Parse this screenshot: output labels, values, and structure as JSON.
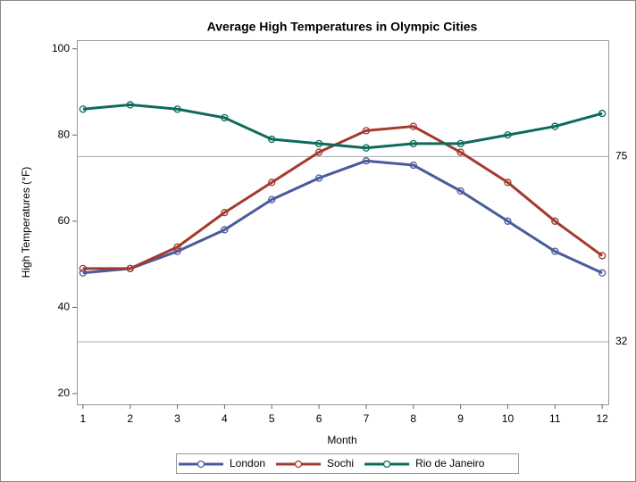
{
  "chart_data": {
    "type": "line",
    "title": "Average High Temperatures in Olympic Cities",
    "x_label": "Month",
    "y_label": "High Temperatures (°F)",
    "x": [
      1,
      2,
      3,
      4,
      5,
      6,
      7,
      8,
      9,
      10,
      11,
      12
    ],
    "series": [
      {
        "name": "London",
        "color": "#4a5a9c",
        "values": [
          48,
          49,
          53,
          58,
          65,
          70,
          74,
          73,
          67,
          60,
          53,
          48
        ]
      },
      {
        "name": "Sochi",
        "color": "#a33a2e",
        "values": [
          49,
          49,
          54,
          62,
          69,
          76,
          81,
          82,
          76,
          69,
          60,
          52
        ]
      },
      {
        "name": "Rio de Janeiro",
        "color": "#0d6b5c",
        "values": [
          86,
          87,
          86,
          84,
          79,
          78,
          77,
          78,
          78,
          80,
          82,
          85
        ]
      }
    ],
    "xlim": [
      0.87,
      12.13
    ],
    "xticks": [
      1,
      2,
      3,
      4,
      5,
      6,
      7,
      8,
      9,
      10,
      11,
      12
    ],
    "ylim": [
      17.5,
      102
    ],
    "yticks": [
      20,
      40,
      60,
      80,
      100
    ],
    "reference_lines": [
      75,
      32
    ],
    "grid": false,
    "legend": "bottom"
  }
}
